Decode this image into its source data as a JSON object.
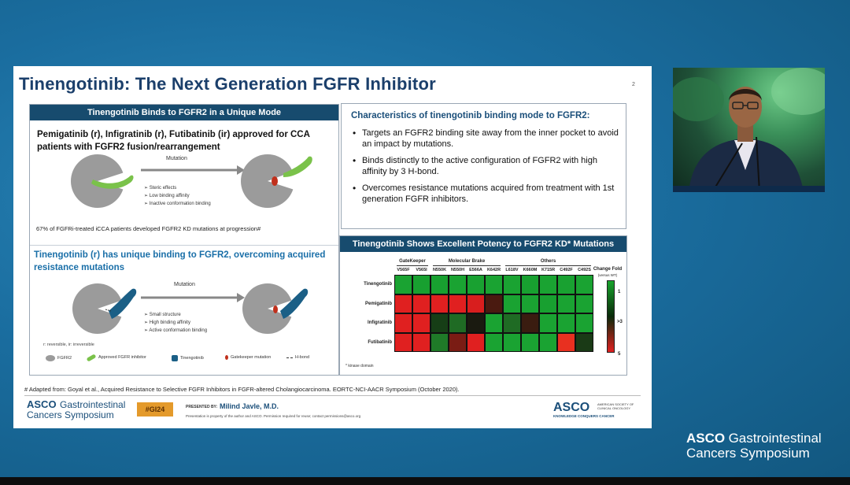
{
  "slide": {
    "title": "Tinengotinib: The Next Generation FGFR Inhibitor",
    "page_number": "2",
    "left_panel": {
      "header": "Tinengotinib Binds to FGFR2 in a Unique Mode",
      "approved_text": "Pemigatinib (r), Infigratinib (r), Futibatinib (ir) approved for CCA patients with FGFR2 fusion/rearrangement",
      "mutation_label": "Mutation",
      "top_bullets": [
        "➢ Steric effects",
        "➢ Low binding affinity",
        "➢ Inactive conformation binding"
      ],
      "stat_text": "67% of FGFRi-treated iCCA patients developed FGFR2 KD mutations at progression#",
      "tinengotinib_text": "Tinengotinib (r) has unique binding to FGFR2, overcoming acquired resistance mutations",
      "bottom_bullets": [
        "➢ Small structure",
        "➢ High binding affinity",
        "➢ Active conformation binding"
      ],
      "reversible_note": "r: reversible, ir: irreversible",
      "legend": {
        "fgfr2": "FGFR2",
        "approved": "Approved FGFR inhibitor",
        "tinengotinib": "Tinengotinib",
        "gatekeeper": "Gatekeeper mutation",
        "hbond": "H-bond"
      }
    },
    "right_top": {
      "heading": "Characteristics of tinengotinib binding mode to FGFR2:",
      "bullets": [
        "Targets an FGFR2 binding site away from the inner pocket to avoid an impact by mutations.",
        "Binds distinctly to the active configuration of FGFR2 with high affinity by 3 H-bond.",
        "Overcomes resistance mutations acquired from treatment with 1st generation FGFR inhibitors."
      ]
    },
    "right_bottom": {
      "header": "Tinengotinib Shows Excellent Potency to FGFR2 KD* Mutations",
      "groups": [
        "GateKeeper",
        "Molecular Brake",
        "Others"
      ],
      "columns": [
        "V565F",
        "V565I",
        "N550K",
        "N550H",
        "E566A",
        "K642R",
        "L618V",
        "K660M",
        "K715R",
        "C492F",
        "C492S"
      ],
      "rows": [
        "Tinengotinib",
        "Pemigatinib",
        "Infigratinib",
        "Futibatinib"
      ],
      "cells": [
        [
          "#1aa332",
          "#18a030",
          "#18a030",
          "#1aa332",
          "#19a131",
          "#1aa332",
          "#1aa332",
          "#18a030",
          "#1aa332",
          "#19a131",
          "#1aa332"
        ],
        [
          "#e02020",
          "#e02020",
          "#e02020",
          "#e02020",
          "#d81e1e",
          "#4a1a10",
          "#1aa332",
          "#1aa332",
          "#18a030",
          "#1aa332",
          "#1aa332"
        ],
        [
          "#e02020",
          "#e02020",
          "#163e16",
          "#1f6b24",
          "#1a1a10",
          "#1aa332",
          "#1f6b24",
          "#3a1c10",
          "#1aa332",
          "#1aa332",
          "#1aa332"
        ],
        [
          "#e02020",
          "#e02020",
          "#1f7a28",
          "#7a1c14",
          "#e02020",
          "#1aa332",
          "#1aa332",
          "#1aa332",
          "#1aa332",
          "#e83020",
          "#1a3a16"
        ]
      ],
      "scale_title": "Change Fold",
      "scale_sub": "(versus WT)",
      "scale_ticks": [
        "1",
        ">3",
        "5"
      ],
      "kinase_note": "* kinase domain"
    },
    "footnote": "# Adapted from: Goyal et al., Acquired Resistance to Selective FGFR Inhibitors in FGFR-altered Cholangiocarcinoma. EORTC-NCI-AACR Symposium (October 2020).",
    "footer": {
      "asco": "ASCO",
      "gi": "Gastrointestinal",
      "symposium": "Cancers Symposium",
      "tag": "#GI24",
      "presented_by": "PRESENTED BY:",
      "presenter": "Milind Javle, M.D.",
      "pres_note": "Presentation is property of the author and ASCO. Permission required for reuse; contact permissions@asco.org",
      "asco_logo": "ASCO",
      "society": "AMERICAN SOCIETY OF CLINICAL ONCOLOGY",
      "tagline": "KNOWLEDGE CONQUERS CANCER"
    }
  },
  "brand": {
    "asco": "ASCO",
    "gi": "Gastrointestinal",
    "symposium": "Cancers Symposium"
  }
}
